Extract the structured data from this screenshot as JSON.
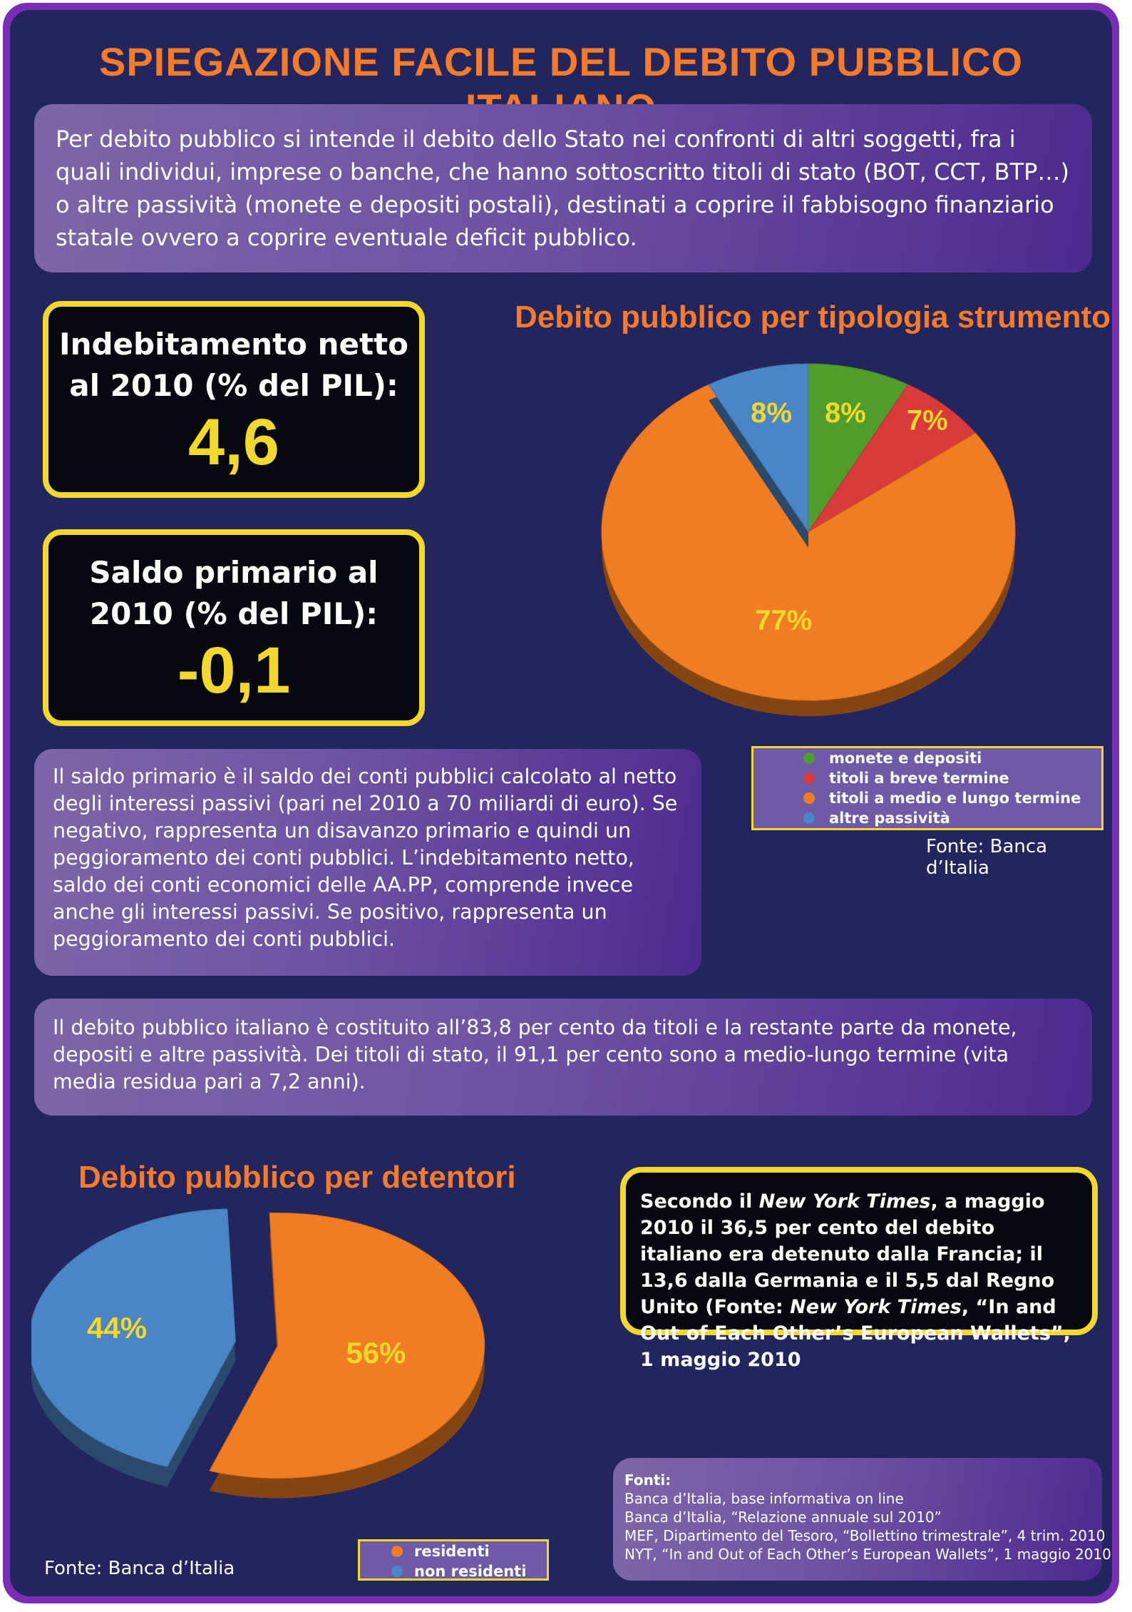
{
  "title": "SPIEGAZIONE FACILE DEL DEBITO PUBBLICO ITALIANO",
  "intro_text": "Per debito pubblico si intende il debito dello Stato nei confronti di altri soggetti, fra i quali individui, imprese o banche, che hanno sottoscritto titoli di stato (BOT, CCT, BTP…) o altre passività (monete e depositi postali), destinati a coprire il fabbisogno finanziario statale ovvero a coprire eventuale deficit pubblico.",
  "kpis": [
    {
      "label_line1": "Indebitamento netto",
      "label_line2": "al 2010 (% del PIL):",
      "value": "4,6"
    },
    {
      "label_line1": "Saldo primario al",
      "label_line2": "2010 (% del PIL):",
      "value": "-0,1"
    }
  ],
  "note_saldo": "Il saldo primario è il saldo dei conti pubblici calcolato al netto degli interessi passivi (pari nel 2010 a 70 miliardi di euro). Se negativo, rappresenta un disavanzo primario e quindi un peggioramento dei conti pubblici. L’indebitamento netto, saldo dei conti economici delle AA.PP, comprende invece anche gli interessi passivi. Se positivo, rappresenta un peggioramento dei conti pubblici.",
  "note_composizione": "Il debito pubblico italiano è costituito all’83,8 per cento da titoli e la restante parte da monete, depositi e altre passività. Dei titoli di stato, il 91,1 per cento sono a medio-lungo termine (vita media residua pari a 7,2 anni).",
  "nyt_box": {
    "p1": "Secondo il ",
    "em1": "New York Times",
    "p2": ", a maggio 2010 il 36,5 per cento del debito italiano era detenuto dalla Francia; il 13,6 dalla Germania e il 5,5 dal Regno Unito (Fonte: ",
    "em2": "New York Times",
    "p3": ", “In and Out of Each Other’s European Wallets”, 1 maggio 2010"
  },
  "sources": {
    "heading": "Fonti:",
    "items": [
      "Banca d’Italia, base informativa on line",
      "Banca d’Italia, “Relazione annuale sul 2010”",
      "MEF, Dipartimento del Tesoro, “Bollettino trimestrale”, 4 trim. 2010",
      "NYT, “In and Out of Each Other’s European Wallets”, 1 maggio 2010"
    ]
  },
  "colors": {
    "orange": "#f07d22",
    "blue": "#4a86c5",
    "green": "#4f9e2c",
    "red": "#d93a3a",
    "yellow": "#f2d72c"
  },
  "chart_data": [
    {
      "type": "pie",
      "title": "Debito pubblico per tipologia strumento",
      "source": "Fonte: Banca d’Italia",
      "slices": [
        {
          "name": "monete e depositi",
          "value": 8,
          "label": "8%",
          "color": "#4f9e2c"
        },
        {
          "name": "titoli a breve termine",
          "value": 7,
          "label": "7%",
          "color": "#d93a3a"
        },
        {
          "name": "titoli a medio e lungo termine",
          "value": 77,
          "label": "77%",
          "color": "#f07d22"
        },
        {
          "name": "altre passività",
          "value": 8,
          "label": "8%",
          "color": "#4a86c5"
        }
      ],
      "legend_position": "bottom"
    },
    {
      "type": "pie",
      "title": "Debito pubblico per detentori",
      "source": "Fonte: Banca d’Italia",
      "slices": [
        {
          "name": "residenti",
          "value": 56,
          "label": "56%",
          "color": "#f07d22"
        },
        {
          "name": "non residenti",
          "value": 44,
          "label": "44%",
          "color": "#4a86c5"
        }
      ],
      "legend_position": "bottom"
    }
  ]
}
